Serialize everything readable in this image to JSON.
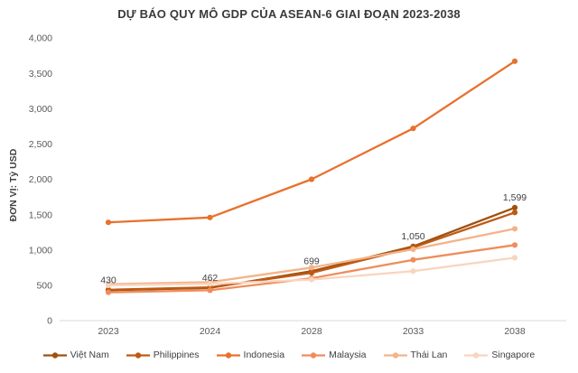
{
  "title": "DỰ BÁO QUY MÔ GDP CỦA ASEAN-6 GIAI ĐOẠN 2023-2038",
  "y_axis_label": "ĐƠN VỊ: Tỷ USD",
  "colors": {
    "axis_line": "#d9d9d9",
    "tick_text": "#595959",
    "data_label_text": "#404040",
    "title_text": "#3a3a3a"
  },
  "chart_data": {
    "type": "line",
    "title": "DỰ BÁO QUY MÔ GDP CỦA ASEAN-6 GIAI ĐOẠN 2023-2038",
    "xlabel": "",
    "ylabel": "ĐƠN VỊ: Tỷ USD",
    "categories": [
      "2023",
      "2024",
      "2028",
      "2033",
      "2038"
    ],
    "y_ticks": [
      "0",
      "500",
      "1,000",
      "1,500",
      "2,000",
      "2,500",
      "3,000",
      "3,500",
      "4,000"
    ],
    "y_tick_values": [
      0,
      500,
      1000,
      1500,
      2000,
      2500,
      3000,
      3500,
      4000
    ],
    "ylim": [
      0,
      4000
    ],
    "grid": false,
    "legend_position": "bottom",
    "series": [
      {
        "name": "Việt Nam",
        "color": "#A0500F",
        "values": [
          430,
          462,
          699,
          1050,
          1599
        ],
        "data_labels": [
          "430",
          "462",
          "699",
          "1,050",
          "1,599"
        ]
      },
      {
        "name": "Philippines",
        "color": "#BE5A15",
        "values": [
          437,
          470,
          676,
          1034,
          1530
        ]
      },
      {
        "name": "Indonesia",
        "color": "#E8712D",
        "values": [
          1390,
          1460,
          2000,
          2720,
          3670
        ]
      },
      {
        "name": "Malaysia",
        "color": "#EE8D5C",
        "values": [
          400,
          430,
          600,
          860,
          1070
        ]
      },
      {
        "name": "Thái Lan",
        "color": "#F4B389",
        "values": [
          515,
          545,
          750,
          1010,
          1300
        ]
      },
      {
        "name": "Singapore",
        "color": "#F9D5C0",
        "values": [
          500,
          520,
          580,
          700,
          890
        ]
      }
    ]
  }
}
